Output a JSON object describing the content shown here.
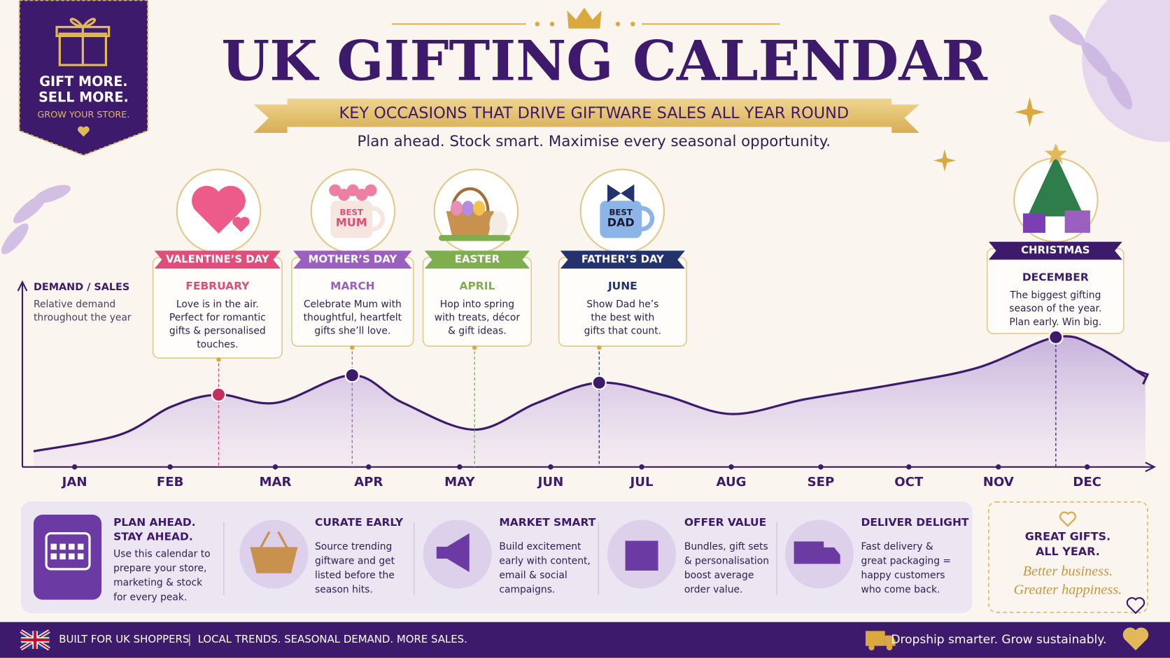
{
  "badge": {
    "lines": [
      "GIFT MORE.",
      "SELL MORE."
    ],
    "tagline": "GROW YOUR STORE."
  },
  "header": {
    "title": "UK GIFTING CALENDAR",
    "banner": "KEY OCCASIONS THAT DRIVE GIFTWARE SALES ALL YEAR ROUND",
    "subtitle": "Plan ahead. Stock smart. Maximise every seasonal opportunity."
  },
  "axis": {
    "label": "DEMAND / SALES",
    "note": [
      "Relative demand",
      "throughout the year"
    ],
    "months": [
      "JAN",
      "FEB",
      "MAR",
      "APR",
      "MAY",
      "JUN",
      "JUL",
      "AUG",
      "SEP",
      "OCT",
      "NOV",
      "DEC"
    ]
  },
  "occasions": [
    {
      "name": "VALENTINE’S DAY",
      "month": "FEBRUARY",
      "text": [
        "Love is in the air.",
        "Perfect for romantic",
        "gifts & personalised",
        "touches."
      ]
    },
    {
      "name": "MOTHER’S DAY",
      "month": "MARCH",
      "text": [
        "Celebrate Mum with",
        "thoughtful, heartfelt",
        "gifts she’ll love."
      ],
      "icon_text": [
        "BEST",
        "MUM"
      ]
    },
    {
      "name": "EASTER",
      "month": "APRIL",
      "text": [
        "Hop into spring",
        "with treats, décor",
        "& gift ideas."
      ]
    },
    {
      "name": "FATHER’S DAY",
      "month": "JUNE",
      "text": [
        "Show Dad he’s",
        "the best with",
        "gifts that count."
      ],
      "icon_text": [
        "BEST",
        "DAD"
      ]
    },
    {
      "name": "CHRISTMAS",
      "month": "DECEMBER",
      "text": [
        "The biggest gifting",
        "season of the year.",
        "Plan early. Win big."
      ]
    }
  ],
  "tips": [
    {
      "title": [
        "PLAN AHEAD.",
        "STAY AHEAD."
      ],
      "text": [
        "Use this calendar to",
        "prepare your store,",
        "marketing & stock",
        "for every peak."
      ]
    },
    {
      "title": [
        "CURATE EARLY"
      ],
      "text": [
        "Source trending",
        "giftware and get",
        "listed before the",
        "season hits."
      ]
    },
    {
      "title": [
        "MARKET SMART"
      ],
      "text": [
        "Build excitement",
        "early with content,",
        "email & social",
        "campaigns."
      ]
    },
    {
      "title": [
        "OFFER VALUE"
      ],
      "text": [
        "Bundles, gift sets",
        "& personalisation",
        "boost average",
        "order value."
      ]
    },
    {
      "title": [
        "DELIVER DELIGHT"
      ],
      "text": [
        "Fast delivery &",
        "great packaging =",
        "happy customers",
        "who come back."
      ]
    }
  ],
  "promo": {
    "title": [
      "GREAT GIFTS.",
      "ALL YEAR."
    ],
    "script": [
      "Better business.",
      "Greater happiness."
    ]
  },
  "footer": {
    "left": "BUILT FOR UK SHOPPERS",
    "middle": "LOCAL TRENDS. SEASONAL DEMAND. MORE SALES.",
    "right": "Dropship smarter. Grow sustainably."
  }
}
